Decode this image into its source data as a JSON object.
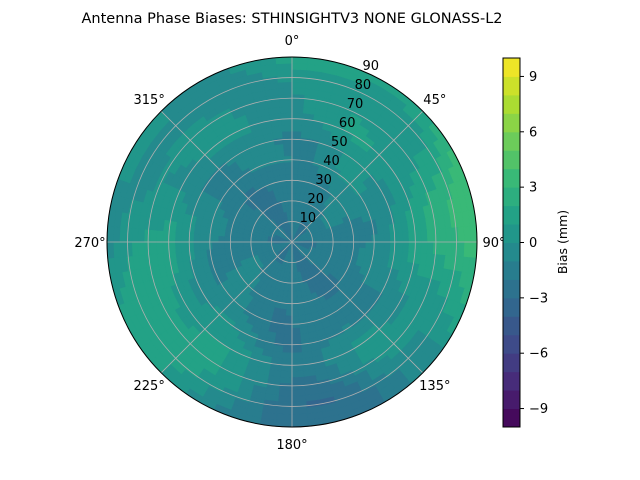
{
  "chart_data": {
    "type": "heatmap",
    "subtype": "polar-filled-contour",
    "title": "Antenna Phase Biases: STHINSIGHTV3    NONE GLONASS-L2",
    "colormap": "viridis",
    "angular_ticks": [
      "0°",
      "45°",
      "90°",
      "135°",
      "180°",
      "225°",
      "270°",
      "315°"
    ],
    "radial_ticks": [
      "10",
      "20",
      "30",
      "40",
      "50",
      "60",
      "70",
      "80",
      "90"
    ],
    "radial_range": [
      0,
      90
    ],
    "angular_direction": "clockwise",
    "angular_zero": "north",
    "grid": true,
    "colorbar": {
      "label": "Bias (mm)",
      "range": [
        -10,
        10
      ],
      "levels_step": 1,
      "ticks": [
        "9",
        "6",
        "3",
        "0",
        "−3",
        "−6",
        "−9"
      ],
      "tick_values": [
        9,
        6,
        3,
        0,
        -3,
        -6,
        -9
      ]
    },
    "azimuth_deg": [
      0,
      45,
      90,
      135,
      180,
      225,
      270,
      315
    ],
    "zenith_deg": [
      0,
      10,
      20,
      30,
      40,
      50,
      60,
      70,
      80,
      90
    ],
    "bias_mm": [
      [
        -2,
        -2,
        -2,
        -2,
        -2,
        -2,
        -2,
        -2
      ],
      [
        -2,
        -2,
        -2,
        -2,
        -2,
        -2,
        -2,
        -2
      ],
      [
        -2,
        -1,
        -1,
        -2,
        -2,
        -1,
        -1,
        -2
      ],
      [
        -2,
        -1,
        -1,
        -2,
        -2,
        -1,
        -1,
        -2
      ],
      [
        -1,
        0,
        -1,
        -1,
        -2,
        -1,
        -1,
        -1
      ],
      [
        -1,
        0,
        0,
        -1,
        -2,
        0,
        0,
        -1
      ],
      [
        0,
        1,
        1,
        0,
        -1,
        1,
        1,
        0
      ],
      [
        0,
        1,
        2,
        0,
        -2,
        2,
        1,
        0
      ],
      [
        0,
        1,
        3,
        -1,
        -3,
        2,
        1,
        -1
      ],
      [
        1,
        2,
        4,
        -1,
        -3,
        1,
        0,
        0
      ]
    ]
  }
}
